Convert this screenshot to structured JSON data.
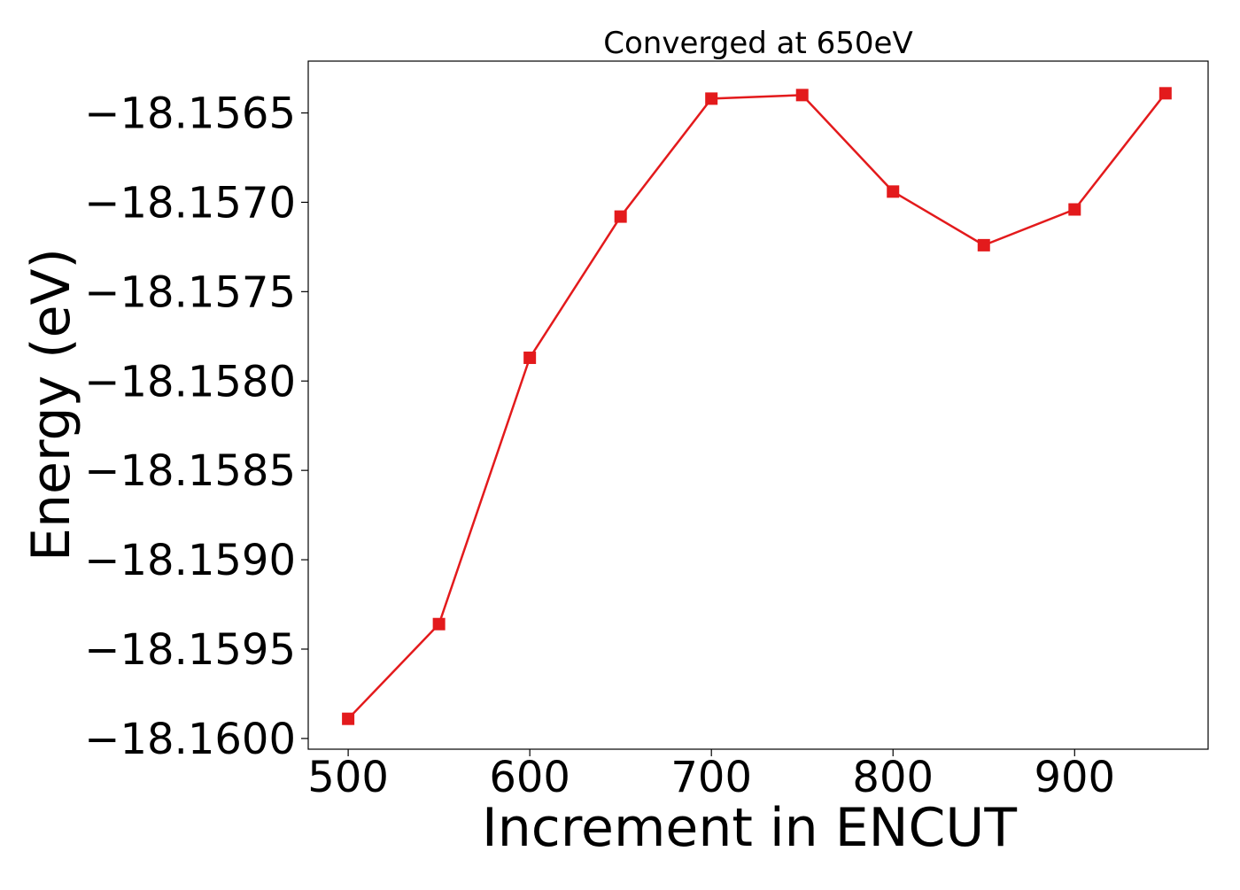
{
  "chart_data": {
    "type": "line",
    "title": "Converged at 650eV",
    "xlabel": "Increment in ENCUT",
    "ylabel": "Energy (eV)",
    "x": [
      500,
      550,
      600,
      650,
      700,
      750,
      800,
      850,
      900,
      950
    ],
    "series": [
      {
        "values": [
          -18.15989,
          -18.15936,
          -18.15787,
          -18.15708,
          -18.15642,
          -18.1564,
          -18.15694,
          -18.15724,
          -18.15704,
          -18.15639
        ],
        "color": "#e31a1c",
        "marker": "square"
      }
    ],
    "xlim": [
      478,
      973.5
    ],
    "ylim": [
      -18.16006,
      -18.15621
    ],
    "xticks": [
      500,
      600,
      700,
      800,
      900
    ],
    "xtick_labels": [
      "500",
      "600",
      "700",
      "800",
      "900"
    ],
    "yticks": [
      -18.16,
      -18.1595,
      -18.159,
      -18.1585,
      -18.158,
      -18.1575,
      -18.157,
      -18.1565
    ],
    "ytick_labels": [
      "−18.1600",
      "−18.1595",
      "−18.1590",
      "−18.1585",
      "−18.1580",
      "−18.1575",
      "−18.1570",
      "−18.1565"
    ],
    "grid": false,
    "legend": false
  }
}
